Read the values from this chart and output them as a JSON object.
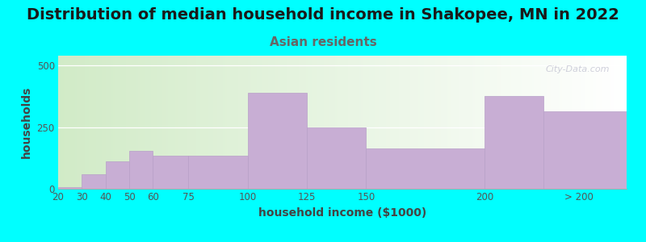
{
  "title": "Distribution of median household income in Shakopee, MN in 2022",
  "subtitle": "Asian residents",
  "xlabel": "household income ($1000)",
  "ylabel": "households",
  "background_color": "#00FFFF",
  "bar_color": "#c8aed4",
  "bar_edge_color": "#b8a0c8",
  "categories": [
    "20",
    "30",
    "40",
    "50",
    "60",
    "75",
    "100",
    "125",
    "150",
    "200",
    "> 200"
  ],
  "left_edges": [
    20,
    30,
    40,
    50,
    60,
    75,
    100,
    125,
    150,
    200,
    225
  ],
  "right_edges": [
    30,
    40,
    50,
    60,
    75,
    100,
    125,
    150,
    200,
    225,
    260
  ],
  "values": [
    5,
    60,
    110,
    155,
    135,
    135,
    390,
    250,
    165,
    375,
    315
  ],
  "ylim": [
    0,
    540
  ],
  "yticks": [
    0,
    250,
    500
  ],
  "xlim": [
    20,
    260
  ],
  "xtick_positions": [
    20,
    30,
    40,
    50,
    60,
    75,
    100,
    125,
    150,
    200,
    240
  ],
  "xtick_labels": [
    "20",
    "30",
    "40",
    "50",
    "60",
    "75",
    "100",
    "125",
    "150",
    "200",
    "> 200"
  ],
  "watermark": "City-Data.com",
  "title_fontsize": 14,
  "subtitle_fontsize": 11,
  "axis_label_fontsize": 10,
  "tick_fontsize": 8.5
}
